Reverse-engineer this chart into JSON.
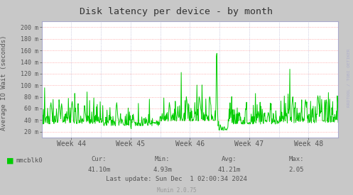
{
  "title": "Disk latency per device - by month",
  "ylabel": "Average IO Wait (seconds)",
  "bg_color": "#c8c8c8",
  "plot_bg_color": "#ffffff",
  "line_color": "#00cc00",
  "grid_h_color": "#ff9999",
  "grid_v_color": "#aaaacc",
  "axis_color": "#aaaacc",
  "text_color": "#555555",
  "title_color": "#333333",
  "legend_label": "mmcblk0",
  "legend_color": "#00cc00",
  "cur_label": "Cur:",
  "cur_value": "41.10m",
  "min_label": "Min:",
  "min_value": "4.93m",
  "avg_label": "Avg:",
  "avg_value": "41.21m",
  "max_label": "Max:",
  "max_value": "2.05",
  "last_update": "Last update: Sun Dec  1 02:00:34 2024",
  "munin_version": "Munin 2.0.75",
  "rrdtool_label": "RRDTOOL / TOBI OETIKER",
  "x_ticks": [
    "Week 44",
    "Week 45",
    "Week 46",
    "Week 47",
    "Week 48"
  ],
  "x_tick_pos": [
    0.1,
    0.3,
    0.5,
    0.7,
    0.9
  ],
  "ylim_low": 0.01,
  "ylim_high": 0.21,
  "yticks": [
    0.02,
    0.04,
    0.06,
    0.08,
    0.1,
    0.12,
    0.14,
    0.16,
    0.18,
    0.2
  ],
  "ytick_labels": [
    "20 m",
    "40 m",
    "60 m",
    "80 m",
    "100 m",
    "120 m",
    "140 m",
    "160 m",
    "180 m",
    "200 m"
  ]
}
